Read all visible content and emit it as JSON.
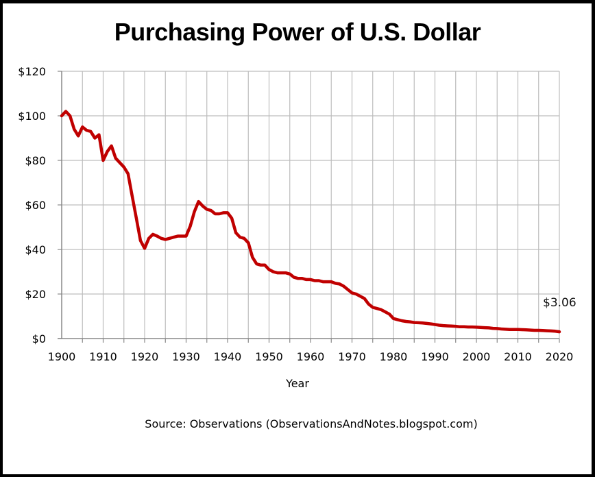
{
  "chart_data": {
    "type": "line",
    "title": "Purchasing Power of U.S. Dollar",
    "xlabel": "Year",
    "ylabel": "",
    "xlim": [
      1900,
      2020
    ],
    "ylim": [
      0,
      120
    ],
    "x_ticks": [
      1900,
      1910,
      1920,
      1930,
      1940,
      1950,
      1960,
      1970,
      1980,
      1990,
      2000,
      2010,
      2020
    ],
    "y_ticks": [
      0,
      20,
      40,
      60,
      80,
      100,
      120
    ],
    "y_tick_labels": [
      "$0",
      "$20",
      "$40",
      "$60",
      "$80",
      "$100",
      "$120"
    ],
    "grid": {
      "vertical_every_years": 5,
      "horizontal_every": 20
    },
    "legend": null,
    "line_color": "#C00000",
    "annotations": [
      {
        "text": "$3.06",
        "x": 2020,
        "y": 3.06
      }
    ],
    "source": "Source: Observations (ObservationsAndNotes.blogspot.com)",
    "series": [
      {
        "name": "Purchasing Power",
        "x": [
          1900,
          1901,
          1902,
          1903,
          1904,
          1905,
          1906,
          1907,
          1908,
          1909,
          1910,
          1911,
          1912,
          1913,
          1914,
          1915,
          1916,
          1917,
          1918,
          1919,
          1920,
          1921,
          1922,
          1923,
          1924,
          1925,
          1926,
          1927,
          1928,
          1929,
          1930,
          1931,
          1932,
          1933,
          1934,
          1935,
          1936,
          1937,
          1938,
          1939,
          1940,
          1941,
          1942,
          1943,
          1944,
          1945,
          1946,
          1947,
          1948,
          1949,
          1950,
          1951,
          1952,
          1953,
          1954,
          1955,
          1956,
          1957,
          1958,
          1959,
          1960,
          1961,
          1962,
          1963,
          1964,
          1965,
          1966,
          1967,
          1968,
          1969,
          1970,
          1971,
          1972,
          1973,
          1974,
          1975,
          1976,
          1977,
          1978,
          1979,
          1980,
          1981,
          1982,
          1983,
          1984,
          1985,
          1986,
          1987,
          1988,
          1989,
          1990,
          1991,
          1992,
          1993,
          1994,
          1995,
          1996,
          1997,
          1998,
          1999,
          2000,
          2001,
          2002,
          2003,
          2004,
          2005,
          2006,
          2007,
          2008,
          2009,
          2010,
          2011,
          2012,
          2013,
          2014,
          2015,
          2016,
          2017,
          2018,
          2019,
          2020
        ],
        "values": [
          100,
          102,
          100,
          94,
          91,
          95,
          93.5,
          93,
          90,
          91.5,
          80,
          84,
          86.5,
          81,
          79,
          77,
          74,
          64,
          54,
          44,
          40.5,
          45,
          46.8,
          46,
          45,
          44.5,
          45,
          45.5,
          46,
          46,
          46,
          50.5,
          57,
          61.5,
          59.5,
          58,
          57.5,
          56,
          56,
          56.5,
          56.5,
          54,
          47.5,
          45.5,
          45,
          43,
          36.5,
          33.5,
          33,
          33,
          31,
          30,
          29.5,
          29.5,
          29.5,
          29,
          27.5,
          27,
          27,
          26.5,
          26.5,
          26,
          26,
          25.5,
          25.5,
          25.5,
          24.8,
          24.5,
          23.5,
          22,
          20.5,
          20,
          19,
          18,
          15.5,
          14,
          13.5,
          13,
          12,
          11,
          9,
          8.5,
          8,
          7.7,
          7.5,
          7.2,
          7.1,
          7,
          6.8,
          6.6,
          6.3,
          6,
          5.8,
          5.7,
          5.6,
          5.5,
          5.3,
          5.3,
          5.2,
          5.2,
          5.1,
          5,
          4.9,
          4.8,
          4.6,
          4.5,
          4.3,
          4.2,
          4.1,
          4.1,
          4.1,
          4,
          3.9,
          3.8,
          3.7,
          3.7,
          3.6,
          3.5,
          3.4,
          3.3,
          3.06
        ]
      }
    ]
  }
}
